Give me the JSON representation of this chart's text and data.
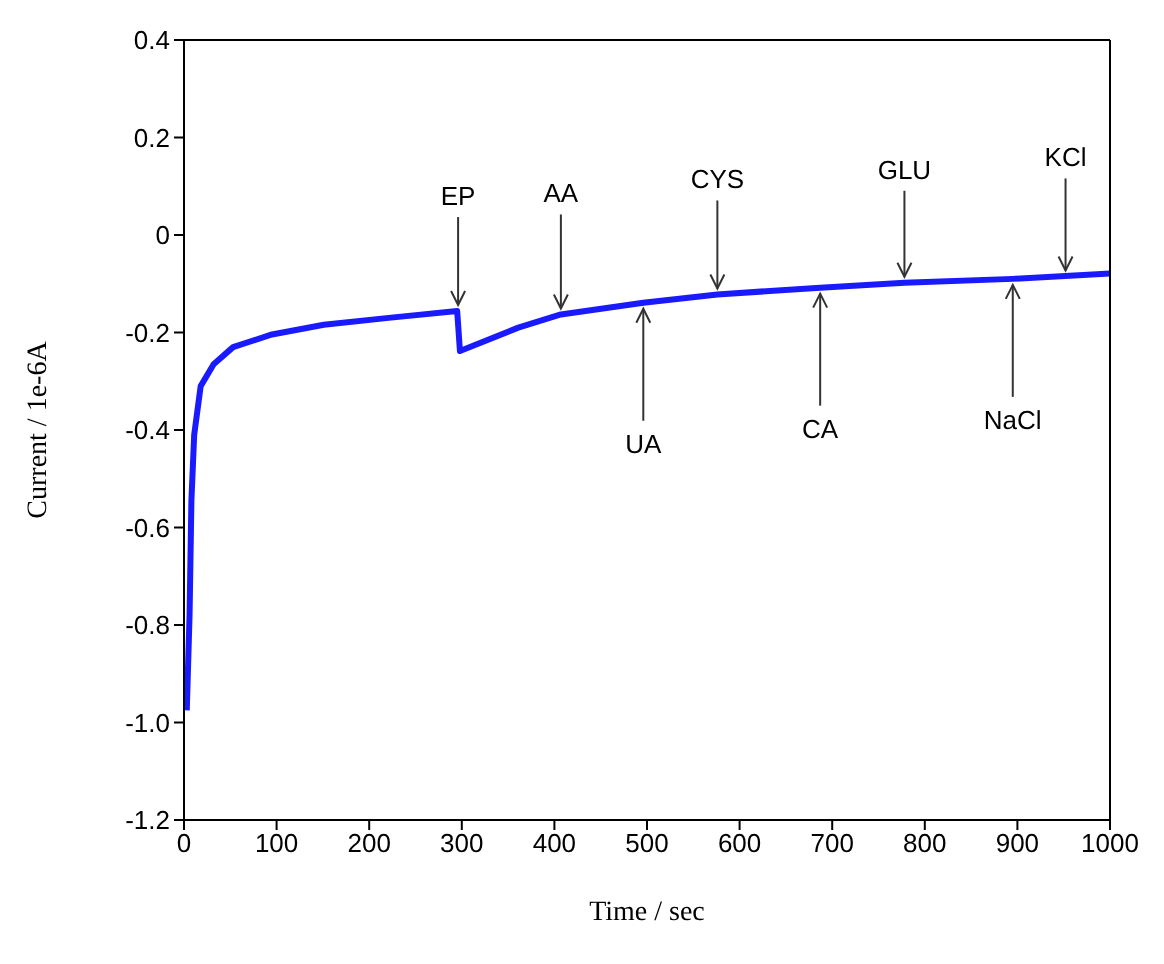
{
  "chart_data": {
    "type": "line",
    "xlabel": "Time / sec",
    "ylabel": "Current / 1e-6A",
    "x": [
      3,
      6,
      8,
      11,
      18,
      32,
      53,
      95,
      151,
      221,
      295,
      298,
      361,
      407,
      496,
      576,
      687,
      778,
      895,
      1000
    ],
    "series": [
      {
        "color": "#1a1aff",
        "values": [
          -0.975,
          -0.78,
          -0.545,
          -0.41,
          -0.31,
          -0.265,
          -0.23,
          -0.204,
          -0.184,
          -0.17,
          -0.156,
          -0.238,
          -0.19,
          -0.163,
          -0.139,
          -0.122,
          -0.108,
          -0.098,
          -0.09,
          -0.079
        ]
      }
    ],
    "xlim": [
      0,
      1000
    ],
    "xticks": [
      0,
      100,
      200,
      300,
      400,
      500,
      600,
      700,
      800,
      900,
      1000
    ],
    "ylim": [
      -1.2,
      0.4
    ],
    "yticks": [
      -1.2,
      {
        "value": -1,
        "label": "-1.0"
      },
      -0.8,
      -0.6,
      -0.4,
      -0.2,
      0,
      0.2,
      0.4
    ],
    "grid": false,
    "legend": false,
    "marker": "none",
    "line_style": "solid",
    "annotations": [
      {
        "text": "EP",
        "x": 296,
        "y": -0.156
      },
      {
        "text": "AA",
        "x": 407,
        "y": -0.163
      },
      {
        "text": "UA",
        "x": 496,
        "y": -0.139
      },
      {
        "text": "CYS",
        "x": 576,
        "y": -0.122
      },
      {
        "text": "CA",
        "x": 687,
        "y": -0.108
      },
      {
        "text": "GLU",
        "x": 778,
        "y": -0.098
      },
      {
        "text": "NaCl",
        "x": 895,
        "y": -0.09
      },
      {
        "text": "KCl",
        "x": 952,
        "y": -0.085
      }
    ]
  }
}
